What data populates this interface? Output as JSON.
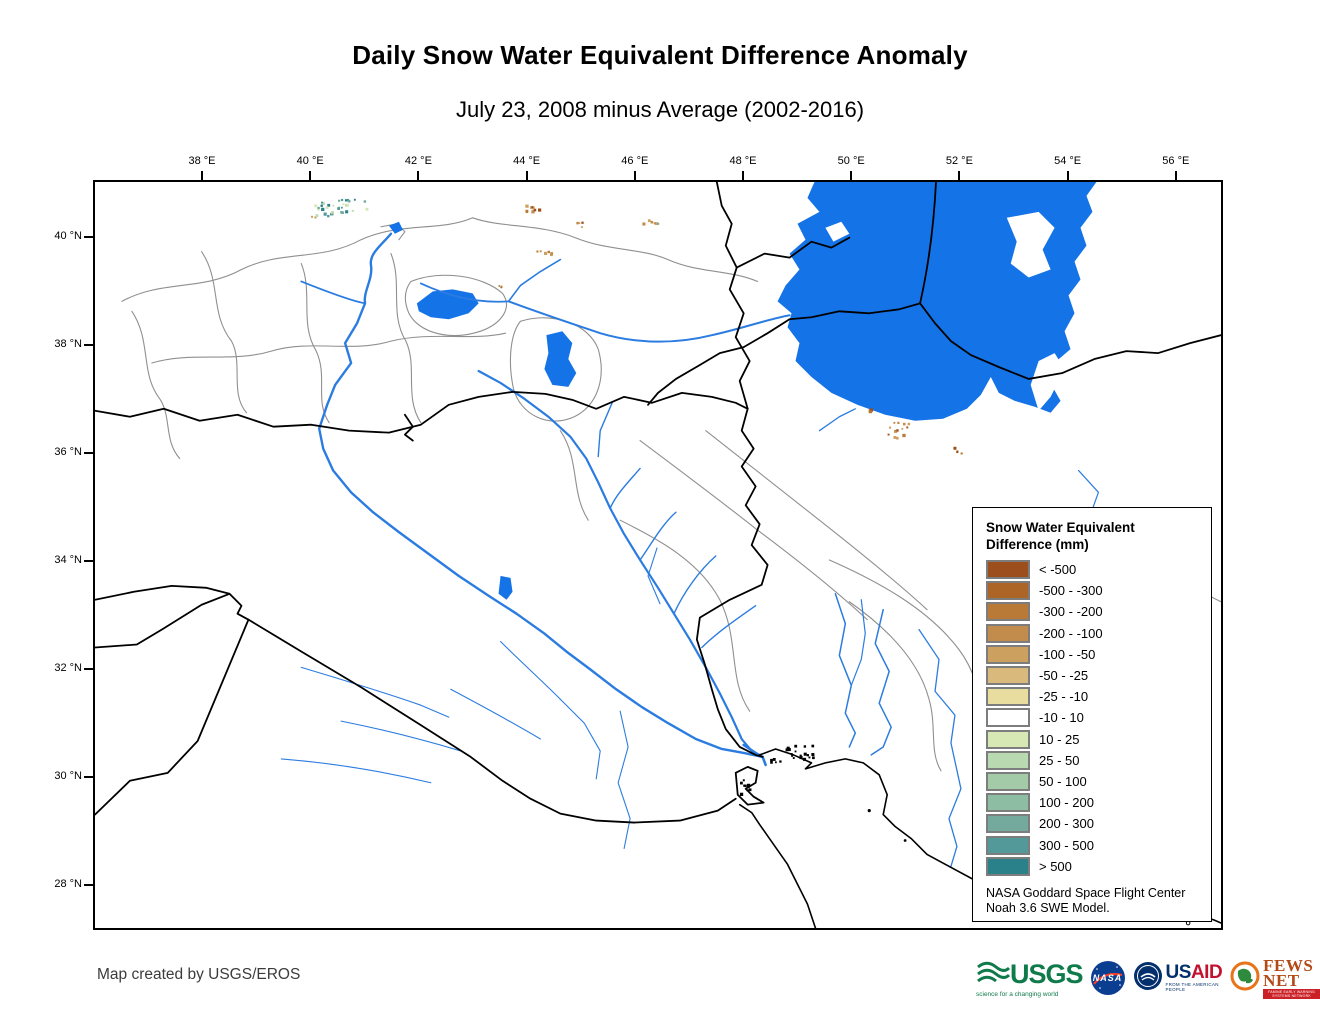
{
  "title": "Daily Snow Water Equivalent Difference Anomaly",
  "subtitle": "July 23, 2008 minus Average (2002-2016)",
  "map": {
    "lon_labels": [
      "38 °E",
      "40 °E",
      "42 °E",
      "44 °E",
      "46 °E",
      "48 °E",
      "50 °E",
      "52 °E",
      "54 °E",
      "56 °E"
    ],
    "lat_labels": [
      "40 °N",
      "38 °N",
      "36 °N",
      "34 °N",
      "32 °N",
      "30 °N",
      "28 °N"
    ]
  },
  "legend": {
    "title_line1": "Snow Water Equivalent",
    "title_line2": "Difference (mm)",
    "items": [
      {
        "label": "< -500",
        "color": "#9d4e1d"
      },
      {
        "label": "-500 - -300",
        "color": "#ad6527"
      },
      {
        "label": "-300 - -200",
        "color": "#b97a37"
      },
      {
        "label": "-200 - -100",
        "color": "#c28d4c"
      },
      {
        "label": "-100 - -50",
        "color": "#cca05f"
      },
      {
        "label": "-50 - -25",
        "color": "#d9ba7c"
      },
      {
        "label": "-25 - -10",
        "color": "#e9dc9f"
      },
      {
        "label": "-10 - 10",
        "color": "#ffffff"
      },
      {
        "label": "10 - 25",
        "color": "#d7e8b5"
      },
      {
        "label": "25 - 50",
        "color": "#b9d9b1"
      },
      {
        "label": "50 - 100",
        "color": "#a3cba7"
      },
      {
        "label": "100 - 200",
        "color": "#8dbda3"
      },
      {
        "label": "200 - 300",
        "color": "#74aa9e"
      },
      {
        "label": "300 - 500",
        "color": "#53999a"
      },
      {
        "label": "> 500",
        "color": "#2a818a"
      }
    ],
    "attribution_line1": "NASA Goddard Space Flight Center",
    "attribution_line2": "Noah 3.6 SWE Model."
  },
  "footer": {
    "credit": "Map created by USGS/EROS"
  },
  "logos": {
    "usgs": {
      "text": "USGS",
      "tagline": "science for a changing world"
    },
    "nasa": {
      "text": "NASA"
    },
    "usaid": {
      "text_us": "US",
      "text_aid": "AID",
      "tagline": "FROM THE AMERICAN PEOPLE"
    },
    "fewsnet": {
      "text": "FEWS NET",
      "tagline": "FAMINE EARLY WARNING SYSTEMS NETWORK"
    }
  },
  "colors": {
    "water": "#1573e8",
    "river": "#2b7ce0",
    "border": "#000000",
    "watershed": "#8f8f8f"
  }
}
